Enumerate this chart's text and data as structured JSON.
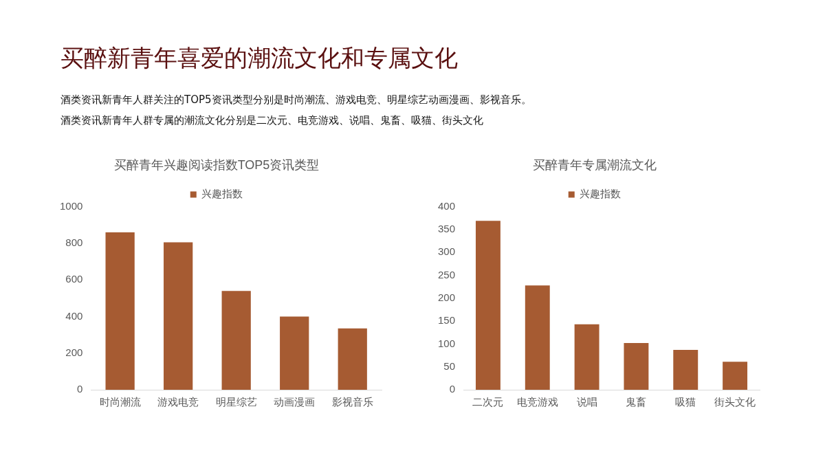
{
  "chart_data": [
    {
      "type": "other",
      "title": "买醉新青年喜爱的潮流文化和专属文化",
      "annotations": [
        "酒类资讯新青年人群关注的TOP5资讯类型分别是时尚潮流、游戏电竞、明星综艺动画漫画、影视音乐。",
        "酒类资讯新青年人群专属的潮流文化分别是二次元、电竞游戏、说唱、鬼畜、吸猫、街头文化"
      ]
    },
    {
      "type": "bar",
      "title": "买醉青年兴趣阅读指数TOP5资讯类型",
      "categories": [
        "时尚潮流",
        "游戏电竞",
        "明星综艺",
        "动画漫画",
        "影视音乐"
      ],
      "series": [
        {
          "name": "兴趣指数",
          "color": "#a65b32",
          "values": [
            860,
            805,
            540,
            400,
            335
          ]
        }
      ],
      "ylim": [
        0,
        1000
      ],
      "yticks": [
        0,
        200,
        400,
        600,
        800,
        1000
      ],
      "grid": false,
      "legend": "top"
    },
    {
      "type": "bar",
      "title": "买醉青年专属潮流文化",
      "categories": [
        "二次元",
        "电竞游戏",
        "说唱",
        "鬼畜",
        "吸猫",
        "街头文化"
      ],
      "series": [
        {
          "name": "兴趣指数",
          "color": "#a65b32",
          "values": [
            369,
            228,
            143,
            102,
            87,
            61
          ]
        }
      ],
      "ylim": [
        0,
        400
      ],
      "yticks": [
        0,
        50,
        100,
        150,
        200,
        250,
        300,
        350,
        400
      ],
      "grid": false,
      "legend": "top"
    }
  ]
}
